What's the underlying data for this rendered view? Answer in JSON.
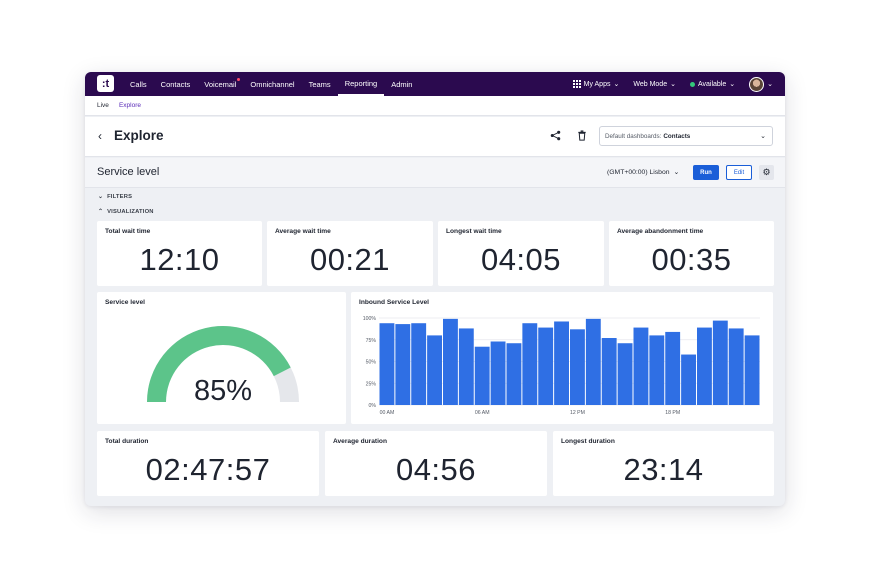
{
  "nav": {
    "logo": ":t",
    "links": [
      {
        "label": "Calls"
      },
      {
        "label": "Contacts"
      },
      {
        "label": "Voicemail"
      },
      {
        "label": "Omnichannel"
      },
      {
        "label": "Teams"
      },
      {
        "label": "Reporting"
      },
      {
        "label": "Admin"
      }
    ],
    "my_apps": "My Apps",
    "web_mode": "Web Mode",
    "status": "Available"
  },
  "subnav": {
    "live": "Live",
    "explore": "Explore"
  },
  "explore": {
    "title": "Explore",
    "dashboard_prefix": "Default dashboards:",
    "dashboard_value": "Contacts"
  },
  "toolbar": {
    "title": "Service level",
    "timezone": "(GMT+00:00) Lisbon",
    "run": "Run",
    "edit": "Edit"
  },
  "sections": {
    "filters": "FILTERS",
    "visualization": "VISUALIZATION"
  },
  "metrics_top": [
    {
      "title": "Total wait time",
      "value": "12:10"
    },
    {
      "title": "Average wait time",
      "value": "00:21"
    },
    {
      "title": "Longest wait time",
      "value": "04:05"
    },
    {
      "title": "Average abandonment time",
      "value": "00:35"
    }
  ],
  "gauge": {
    "title": "Service level",
    "value_text": "85%",
    "value": 0.85,
    "color": "#5cc48a"
  },
  "metrics_bottom": [
    {
      "title": "Total duration",
      "value": "02:47:57"
    },
    {
      "title": "Average duration",
      "value": "04:56"
    },
    {
      "title": "Longest duration",
      "value": "23:14"
    }
  ],
  "chart_data": {
    "type": "bar",
    "title": "Inbound Service Level",
    "yticks": [
      "100%",
      "75%",
      "50%",
      "25%",
      "0%"
    ],
    "ylim": [
      0,
      100
    ],
    "xticks": [
      {
        "label": "00 AM",
        "index": 0
      },
      {
        "label": "06 AM",
        "index": 6
      },
      {
        "label": "12 PM",
        "index": 12
      },
      {
        "label": "18 PM",
        "index": 18
      }
    ],
    "values": [
      94,
      93,
      94,
      80,
      99,
      88,
      67,
      73,
      71,
      94,
      89,
      96,
      87,
      99,
      77,
      71,
      89,
      80,
      84,
      58,
      89,
      97,
      88,
      80
    ],
    "color": "#2f6fe4",
    "grid": true
  }
}
